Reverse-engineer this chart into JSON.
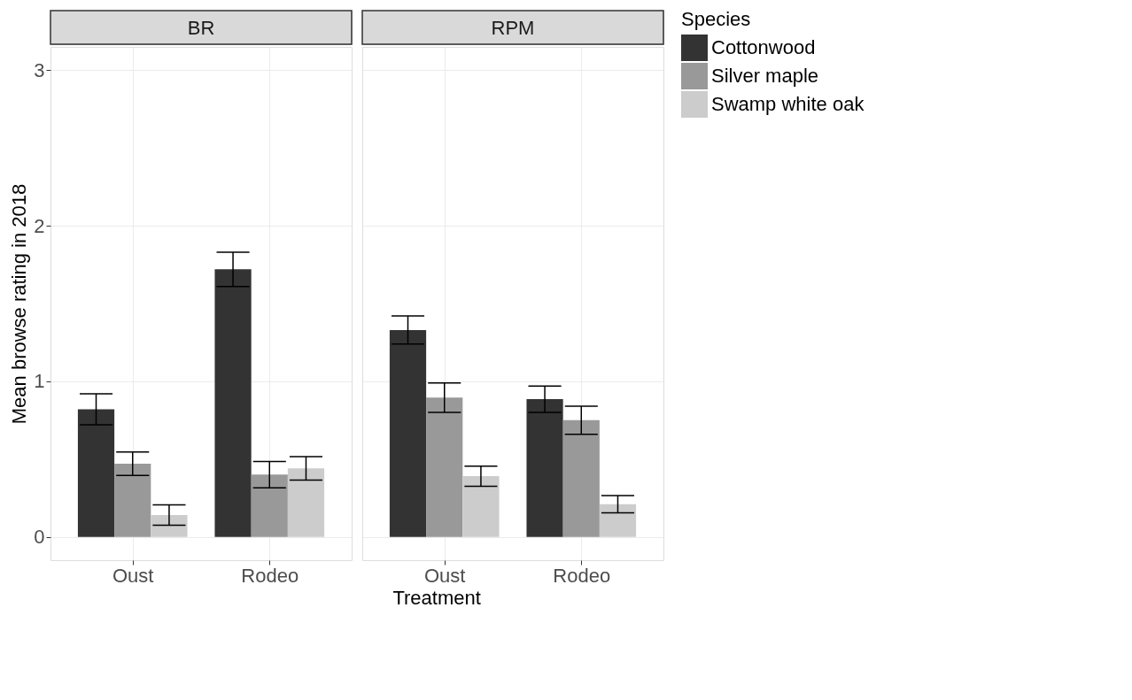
{
  "chart_data": [
    {
      "type": "bar",
      "title": "BR",
      "xlabel": "Treatment",
      "ylabel": "Mean browse rating in 2018",
      "legend_title": "Species",
      "legend": "right",
      "grid": true,
      "categories": [
        "Oust",
        "Rodeo"
      ],
      "ylim": [
        -0.15,
        3.15
      ],
      "yticks": [
        0,
        1,
        2,
        3
      ],
      "series": [
        {
          "name": "Cottonwood",
          "color": "#333333",
          "values": [
            0.82,
            1.72
          ],
          "errors": [
            0.1,
            0.11
          ]
        },
        {
          "name": "Silver maple",
          "color": "#999999",
          "values": [
            0.47,
            0.4
          ],
          "errors": [
            0.075,
            0.085
          ]
        },
        {
          "name": "Swamp white oak",
          "color": "#cccccc",
          "values": [
            0.14,
            0.44
          ],
          "errors": [
            0.065,
            0.075
          ]
        }
      ]
    },
    {
      "type": "bar",
      "title": "RPM",
      "grid": true,
      "tick_labels": "x",
      "categories": [
        "Oust",
        "Rodeo"
      ],
      "ylim": [
        -0.15,
        3.15
      ],
      "yticks": [
        0,
        1,
        2,
        3
      ],
      "series": [
        {
          "name": "Cottonwood",
          "color": "#333333",
          "values": [
            1.33,
            0.885
          ],
          "errors": [
            0.09,
            0.085
          ]
        },
        {
          "name": "Silver maple",
          "color": "#999999",
          "values": [
            0.895,
            0.75
          ],
          "errors": [
            0.095,
            0.09
          ]
        },
        {
          "name": "Swamp white oak",
          "color": "#cccccc",
          "values": [
            0.39,
            0.21
          ],
          "errors": [
            0.065,
            0.055
          ]
        }
      ]
    }
  ]
}
